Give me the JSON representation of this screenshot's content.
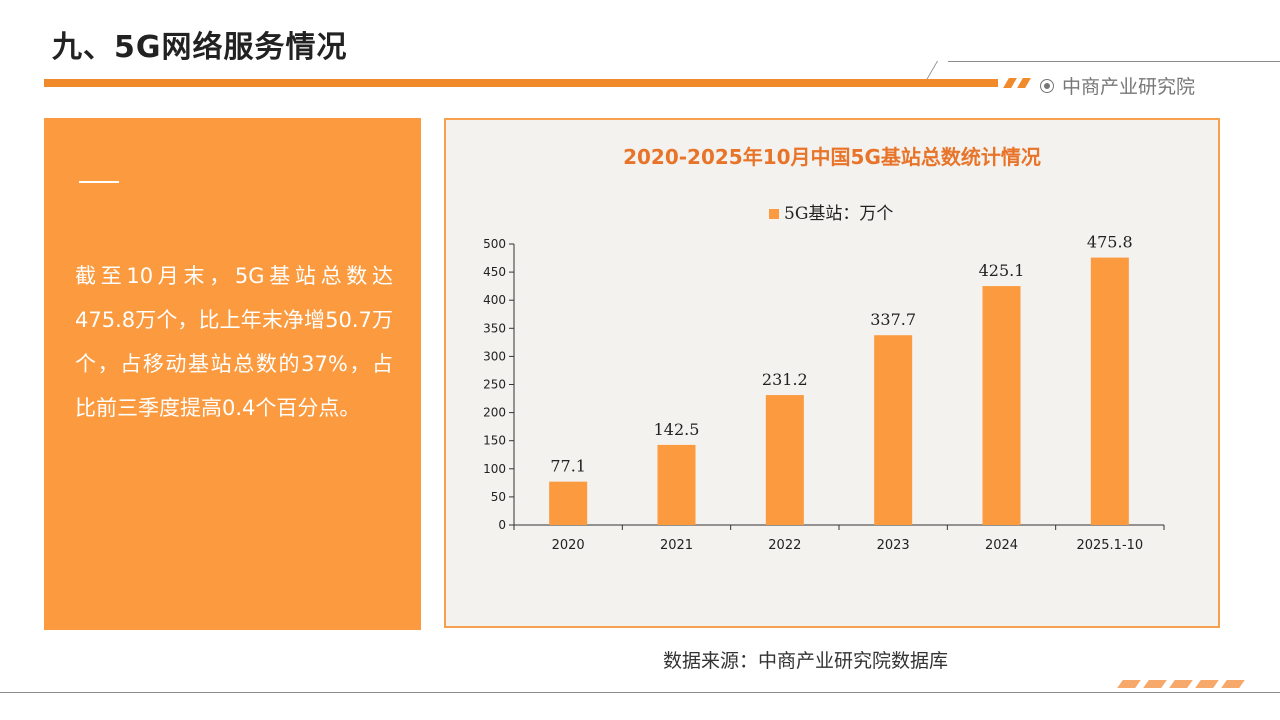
{
  "page": {
    "title": "九、5G网络服务情况",
    "brand": "中商产业研究院",
    "source": "数据来源：中商产业研究院数据库"
  },
  "summary": {
    "text": "截至10月末，5G基站总数达475.8万个，比上年末净增50.7万个，占移动基站总数的37%，占比前三季度提高0.4个百分点。"
  },
  "colors": {
    "accent": "#f08a2a",
    "panel": "#fb9a3e",
    "bar": "#fb9a3e",
    "chart_bg": "#f4f2ee"
  },
  "chart_data": {
    "type": "bar",
    "title": "2020-2025年10月中国5G基站总数统计情况",
    "categories": [
      "2020",
      "2021",
      "2022",
      "2023",
      "2024",
      "2025.1-10"
    ],
    "series": [
      {
        "name": "5G基站：万个",
        "values": [
          77.1,
          142.5,
          231.2,
          337.7,
          425.1,
          475.8
        ]
      }
    ],
    "ylim": [
      0,
      500
    ],
    "yticks": [
      0,
      50,
      100,
      150,
      200,
      250,
      300,
      350,
      400,
      450,
      500
    ],
    "grid": false,
    "legend": "top-center",
    "data_labels": true
  }
}
